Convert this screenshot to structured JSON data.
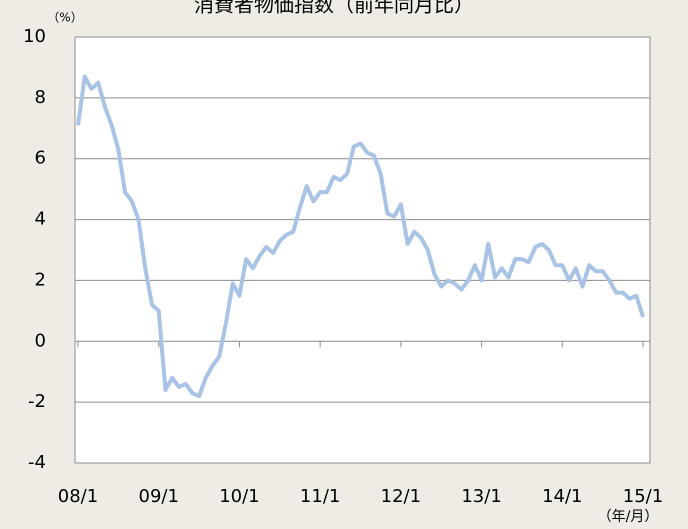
{
  "chart_data": {
    "type": "line",
    "title": "消費者物価指数（前年同月比）",
    "y_unit": "（%）",
    "x_unit": "（年/月）",
    "categories": [
      "08/1",
      null,
      null,
      null,
      null,
      null,
      null,
      null,
      null,
      null,
      null,
      null,
      "09/1",
      null,
      null,
      null,
      null,
      null,
      null,
      null,
      null,
      null,
      null,
      null,
      "10/1",
      null,
      null,
      null,
      null,
      null,
      null,
      null,
      null,
      null,
      null,
      null,
      "11/1",
      null,
      null,
      null,
      null,
      null,
      null,
      null,
      null,
      null,
      null,
      null,
      "12/1",
      null,
      null,
      null,
      null,
      null,
      null,
      null,
      null,
      null,
      null,
      null,
      "13/1",
      null,
      null,
      null,
      null,
      null,
      null,
      null,
      null,
      null,
      null,
      null,
      "14/1",
      null,
      null,
      null,
      null,
      null,
      null,
      null,
      null,
      null,
      null,
      null,
      "15/1"
    ],
    "series": [
      {
        "name": "消費者物価指数",
        "color": "#a8c3e6",
        "values": [
          7.1,
          8.7,
          8.3,
          8.5,
          7.7,
          7.1,
          6.3,
          4.9,
          4.6,
          4.0,
          2.4,
          1.2,
          1.0,
          -1.6,
          -1.2,
          -1.5,
          -1.4,
          -1.7,
          -1.8,
          -1.2,
          -0.8,
          -0.5,
          0.6,
          1.9,
          1.5,
          2.7,
          2.4,
          2.8,
          3.1,
          2.9,
          3.3,
          3.5,
          3.6,
          4.4,
          5.1,
          4.6,
          4.9,
          4.9,
          5.4,
          5.3,
          5.5,
          6.4,
          6.5,
          6.2,
          6.1,
          5.5,
          4.2,
          4.1,
          4.5,
          3.2,
          3.6,
          3.4,
          3.0,
          2.2,
          1.8,
          2.0,
          1.9,
          1.7,
          2.0,
          2.5,
          2.0,
          3.2,
          2.1,
          2.4,
          2.1,
          2.7,
          2.7,
          2.6,
          3.1,
          3.2,
          3.0,
          2.5,
          2.5,
          2.0,
          2.4,
          1.8,
          2.5,
          2.3,
          2.3,
          2.0,
          1.6,
          1.6,
          1.4,
          1.5,
          0.8
        ]
      }
    ],
    "ylim": [
      -4,
      10
    ],
    "yticks": [
      -4,
      -2,
      0,
      2,
      4,
      6,
      8,
      10
    ],
    "grid": true,
    "negative_tick_color": "#ff0000"
  }
}
